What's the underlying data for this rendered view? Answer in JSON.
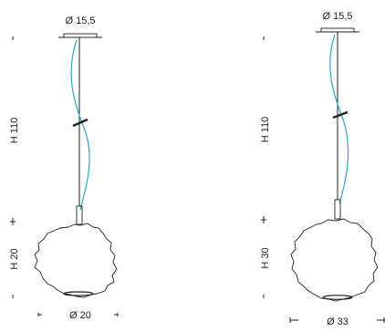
{
  "lamps": [
    {
      "canopy_label": "Ø 15,5",
      "height_cable_label": "H 110",
      "height_globe_label": "H 20",
      "diameter_label": "Ø 20"
    },
    {
      "canopy_label": "Ø 15,5",
      "height_cable_label": "H 110",
      "height_globe_label": "H 30",
      "diameter_label": "Ø 33"
    }
  ],
  "colors": {
    "line": "#222222",
    "cable": "#2aa6c6"
  }
}
